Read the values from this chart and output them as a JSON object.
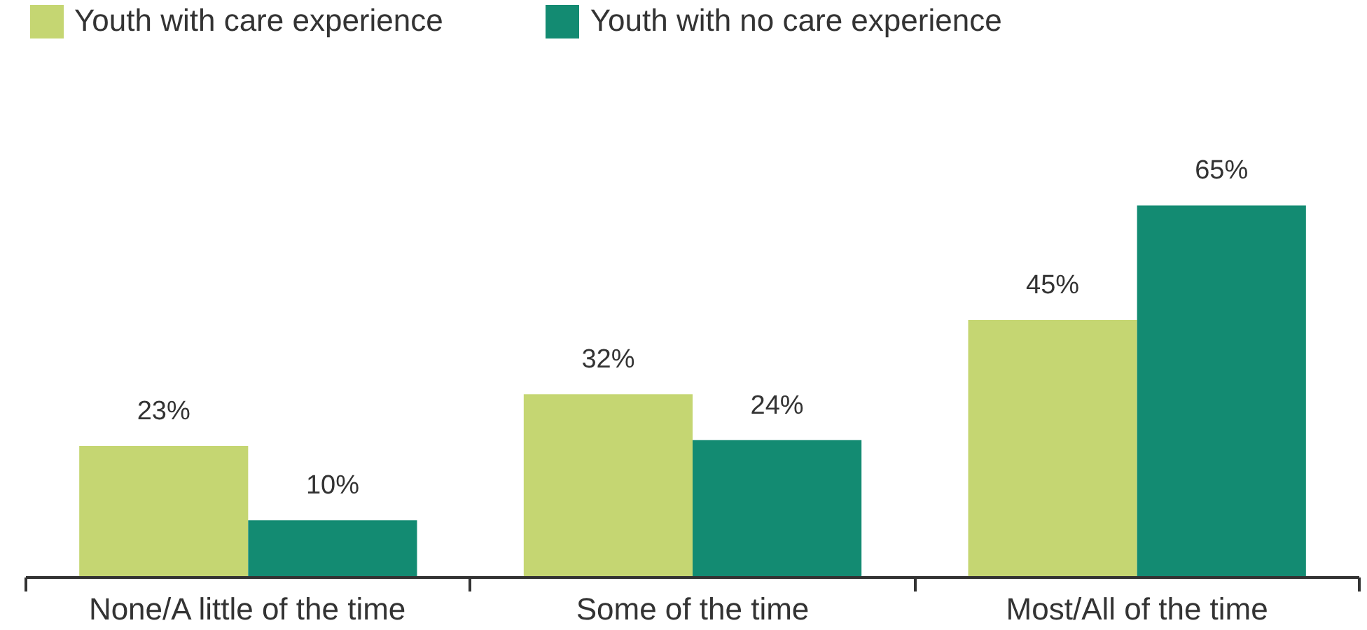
{
  "chart_data": {
    "type": "bar",
    "categories": [
      "None/A little of the time",
      "Some of the time",
      "Most/All of the time"
    ],
    "series": [
      {
        "name": "Youth with care experience",
        "color": "#c5d672",
        "values": [
          23,
          32,
          45
        ],
        "value_labels": [
          "23%",
          "32%",
          "45%"
        ]
      },
      {
        "name": "Youth with no care experience",
        "color": "#138b72",
        "values": [
          10,
          24,
          65
        ],
        "value_labels": [
          "10%",
          "24%",
          "65%"
        ]
      }
    ],
    "legend": "top left"
  }
}
